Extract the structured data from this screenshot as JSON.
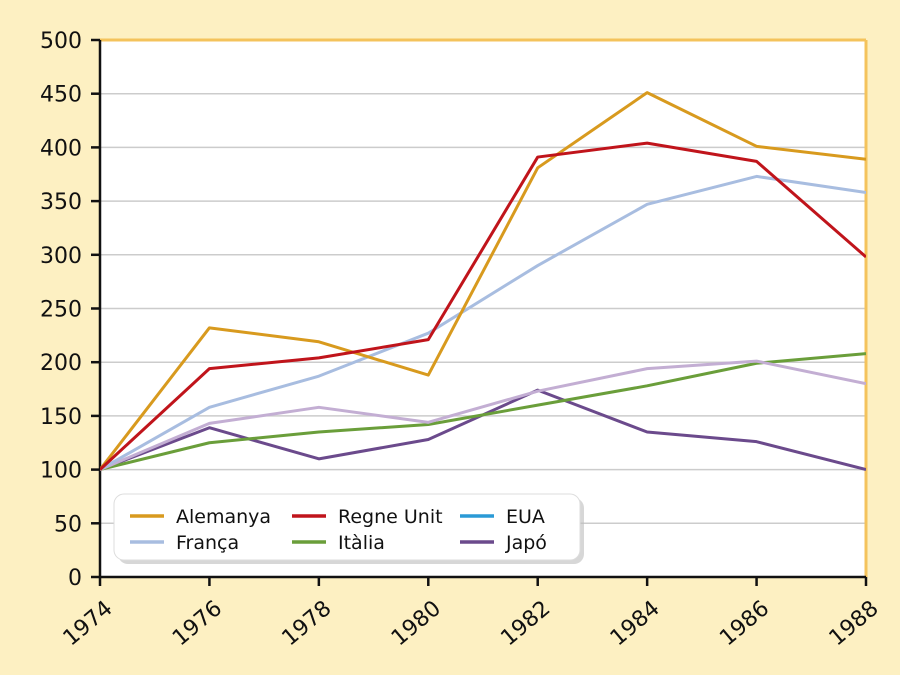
{
  "chart_data": {
    "type": "line",
    "title": "",
    "xlabel": "",
    "ylabel": "",
    "x": [
      1974,
      1976,
      1978,
      1980,
      1982,
      1984,
      1986,
      1988
    ],
    "x_tick_labels": [
      "1974",
      "1976",
      "1978",
      "1980",
      "1982",
      "1984",
      "1986",
      "1988"
    ],
    "ylim": [
      0,
      500
    ],
    "y_ticks": [
      0,
      50,
      100,
      150,
      200,
      250,
      300,
      350,
      400,
      450,
      500
    ],
    "grid": "horizontal",
    "legend_position": "bottom-left",
    "series": [
      {
        "name": "Alemanya",
        "color": "#d89a1e",
        "values": [
          100,
          232,
          219,
          188,
          381,
          451,
          401,
          389
        ]
      },
      {
        "name": "Regne Unit",
        "color": "#c0141b",
        "values": [
          100,
          194,
          204,
          221,
          391,
          404,
          387,
          298
        ]
      },
      {
        "name": "EUA",
        "color": "#c3aed3",
        "values": [
          100,
          143,
          158,
          144,
          173,
          194,
          201,
          180
        ]
      },
      {
        "name": "França",
        "color": "#a8bde0",
        "values": [
          100,
          158,
          187,
          227,
          290,
          347,
          373,
          358
        ]
      },
      {
        "name": "Itàlia",
        "color": "#6a9e3a",
        "values": [
          100,
          125,
          135,
          142,
          160,
          178,
          199,
          208
        ]
      },
      {
        "name": "Japó",
        "color": "#6b4a8c",
        "values": [
          100,
          139,
          110,
          128,
          174,
          135,
          126,
          100
        ]
      }
    ],
    "legend_order": [
      "Alemanya",
      "Regne Unit",
      "EUA",
      "França",
      "Itàlia",
      "Japó"
    ],
    "legend_swatch_colors": {
      "EUA": "#2a9ad6"
    }
  },
  "colors": {
    "background": "#fdf0c2",
    "plot_background": "#ffffff",
    "frame": "#f4c35c",
    "grid": "#cccccc",
    "axis": "#111111"
  }
}
